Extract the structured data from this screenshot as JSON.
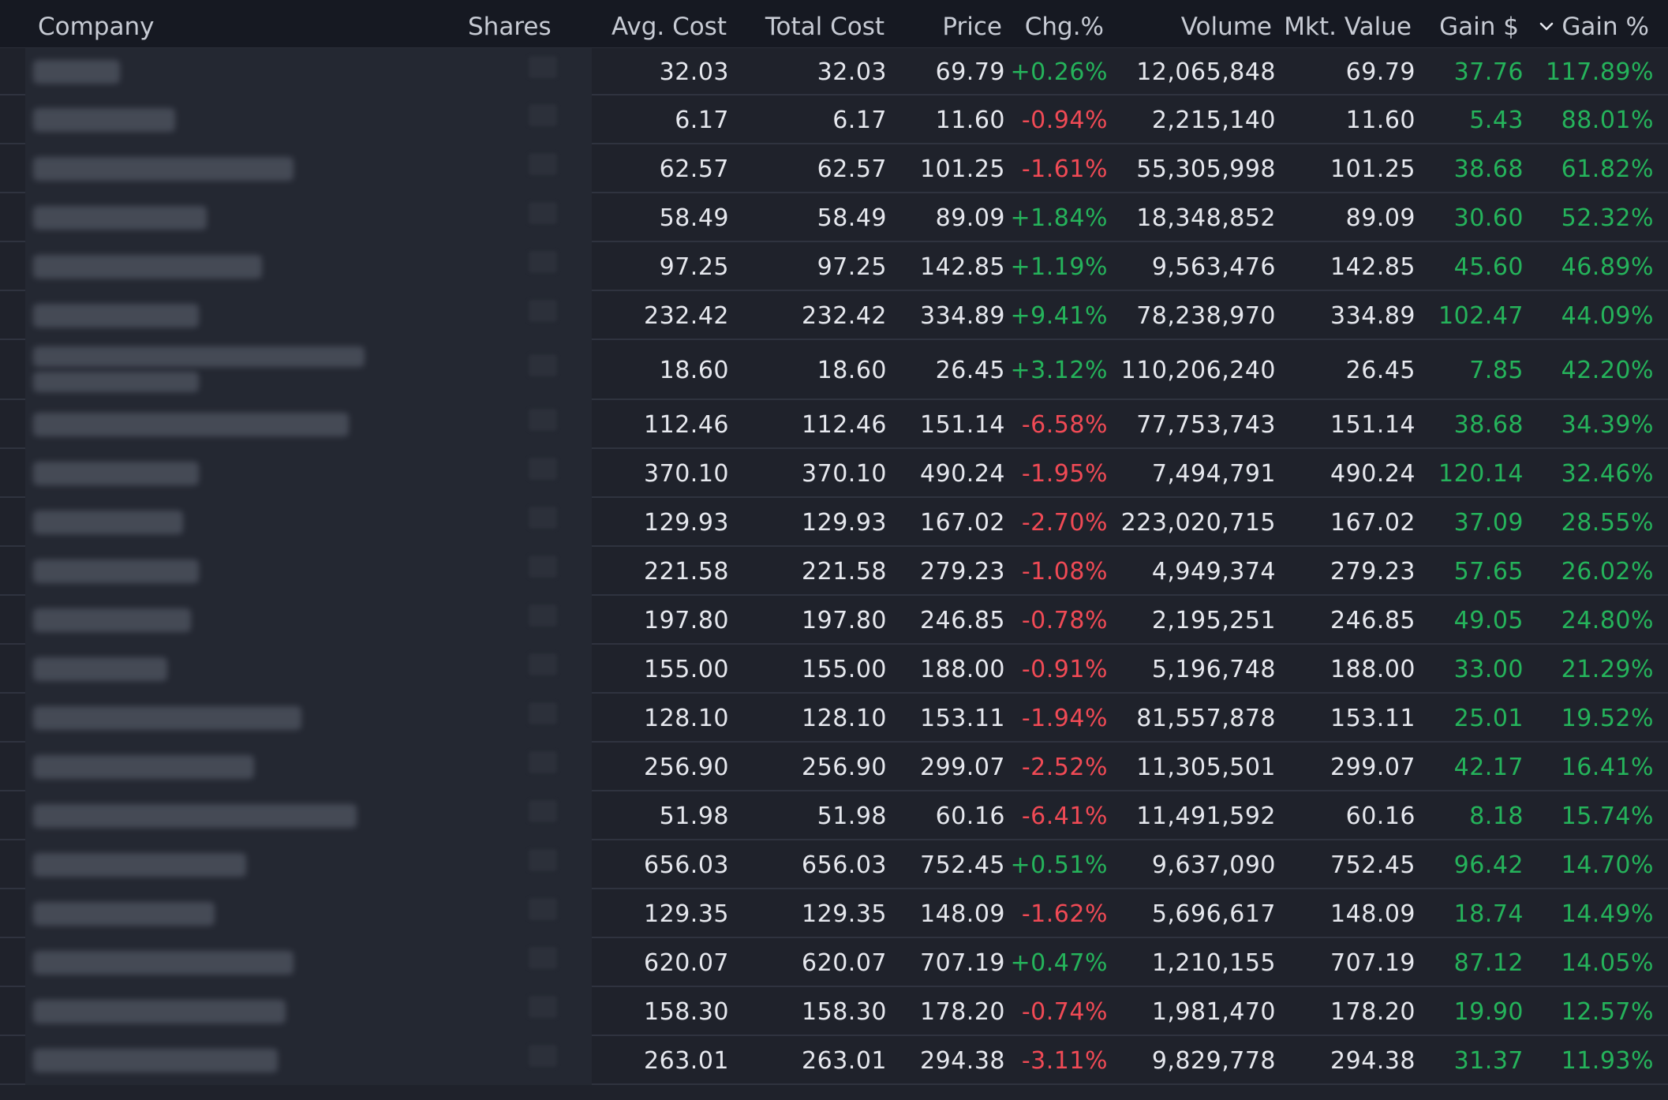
{
  "columns": {
    "company": "Company",
    "shares": "Shares",
    "avg_cost": "Avg. Cost",
    "total_cost": "Total Cost",
    "price": "Price",
    "chg": "Chg.%",
    "volume": "Volume",
    "mkt_value": "Mkt. Value",
    "gain_usd": "Gain $",
    "gain_pct": "Gain %"
  },
  "sort": {
    "column": "gain_pct",
    "direction": "descending",
    "icon": "chevron-down-icon"
  },
  "colors": {
    "background": "#1f222b",
    "header_bg": "#161922",
    "positive": "#25b35b",
    "negative": "#f04a55",
    "text": "#e6e8ee"
  },
  "rows": [
    {
      "avg_cost": "32.03",
      "total_cost": "32.03",
      "price": "69.79",
      "chg": "+0.26%",
      "volume": "12,065,848",
      "mkt_value": "69.79",
      "gain_usd": "37.76",
      "gain_pct": "117.89%"
    },
    {
      "avg_cost": "6.17",
      "total_cost": "6.17",
      "price": "11.60",
      "chg": "-0.94%",
      "volume": "2,215,140",
      "mkt_value": "11.60",
      "gain_usd": "5.43",
      "gain_pct": "88.01%"
    },
    {
      "avg_cost": "62.57",
      "total_cost": "62.57",
      "price": "101.25",
      "chg": "-1.61%",
      "volume": "55,305,998",
      "mkt_value": "101.25",
      "gain_usd": "38.68",
      "gain_pct": "61.82%"
    },
    {
      "avg_cost": "58.49",
      "total_cost": "58.49",
      "price": "89.09",
      "chg": "+1.84%",
      "volume": "18,348,852",
      "mkt_value": "89.09",
      "gain_usd": "30.60",
      "gain_pct": "52.32%"
    },
    {
      "avg_cost": "97.25",
      "total_cost": "97.25",
      "price": "142.85",
      "chg": "+1.19%",
      "volume": "9,563,476",
      "mkt_value": "142.85",
      "gain_usd": "45.60",
      "gain_pct": "46.89%"
    },
    {
      "avg_cost": "232.42",
      "total_cost": "232.42",
      "price": "334.89",
      "chg": "+9.41%",
      "volume": "78,238,970",
      "mkt_value": "334.89",
      "gain_usd": "102.47",
      "gain_pct": "44.09%"
    },
    {
      "avg_cost": "18.60",
      "total_cost": "18.60",
      "price": "26.45",
      "chg": "+3.12%",
      "volume": "110,206,240",
      "mkt_value": "26.45",
      "gain_usd": "7.85",
      "gain_pct": "42.20%"
    },
    {
      "avg_cost": "112.46",
      "total_cost": "112.46",
      "price": "151.14",
      "chg": "-6.58%",
      "volume": "77,753,743",
      "mkt_value": "151.14",
      "gain_usd": "38.68",
      "gain_pct": "34.39%"
    },
    {
      "avg_cost": "370.10",
      "total_cost": "370.10",
      "price": "490.24",
      "chg": "-1.95%",
      "volume": "7,494,791",
      "mkt_value": "490.24",
      "gain_usd": "120.14",
      "gain_pct": "32.46%"
    },
    {
      "avg_cost": "129.93",
      "total_cost": "129.93",
      "price": "167.02",
      "chg": "-2.70%",
      "volume": "223,020,715",
      "mkt_value": "167.02",
      "gain_usd": "37.09",
      "gain_pct": "28.55%"
    },
    {
      "avg_cost": "221.58",
      "total_cost": "221.58",
      "price": "279.23",
      "chg": "-1.08%",
      "volume": "4,949,374",
      "mkt_value": "279.23",
      "gain_usd": "57.65",
      "gain_pct": "26.02%"
    },
    {
      "avg_cost": "197.80",
      "total_cost": "197.80",
      "price": "246.85",
      "chg": "-0.78%",
      "volume": "2,195,251",
      "mkt_value": "246.85",
      "gain_usd": "49.05",
      "gain_pct": "24.80%"
    },
    {
      "avg_cost": "155.00",
      "total_cost": "155.00",
      "price": "188.00",
      "chg": "-0.91%",
      "volume": "5,196,748",
      "mkt_value": "188.00",
      "gain_usd": "33.00",
      "gain_pct": "21.29%"
    },
    {
      "avg_cost": "128.10",
      "total_cost": "128.10",
      "price": "153.11",
      "chg": "-1.94%",
      "volume": "81,557,878",
      "mkt_value": "153.11",
      "gain_usd": "25.01",
      "gain_pct": "19.52%"
    },
    {
      "avg_cost": "256.90",
      "total_cost": "256.90",
      "price": "299.07",
      "chg": "-2.52%",
      "volume": "11,305,501",
      "mkt_value": "299.07",
      "gain_usd": "42.17",
      "gain_pct": "16.41%"
    },
    {
      "avg_cost": "51.98",
      "total_cost": "51.98",
      "price": "60.16",
      "chg": "-6.41%",
      "volume": "11,491,592",
      "mkt_value": "60.16",
      "gain_usd": "8.18",
      "gain_pct": "15.74%"
    },
    {
      "avg_cost": "656.03",
      "total_cost": "656.03",
      "price": "752.45",
      "chg": "+0.51%",
      "volume": "9,637,090",
      "mkt_value": "752.45",
      "gain_usd": "96.42",
      "gain_pct": "14.70%"
    },
    {
      "avg_cost": "129.35",
      "total_cost": "129.35",
      "price": "148.09",
      "chg": "-1.62%",
      "volume": "5,696,617",
      "mkt_value": "148.09",
      "gain_usd": "18.74",
      "gain_pct": "14.49%"
    },
    {
      "avg_cost": "620.07",
      "total_cost": "620.07",
      "price": "707.19",
      "chg": "+0.47%",
      "volume": "1,210,155",
      "mkt_value": "707.19",
      "gain_usd": "87.12",
      "gain_pct": "14.05%"
    },
    {
      "avg_cost": "158.30",
      "total_cost": "158.30",
      "price": "178.20",
      "chg": "-0.74%",
      "volume": "1,981,470",
      "mkt_value": "178.20",
      "gain_usd": "19.90",
      "gain_pct": "12.57%"
    },
    {
      "avg_cost": "263.01",
      "total_cost": "263.01",
      "price": "294.38",
      "chg": "-3.11%",
      "volume": "9,829,778",
      "mkt_value": "294.38",
      "gain_usd": "31.37",
      "gain_pct": "11.93%"
    }
  ]
}
